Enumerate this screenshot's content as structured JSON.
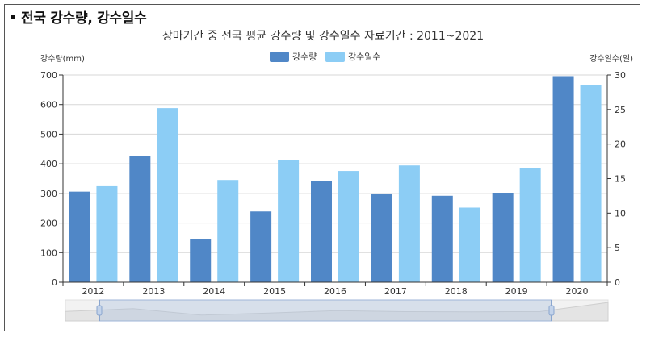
{
  "heading": "전국 강수량, 강수일수",
  "chart_data": {
    "type": "bar",
    "title": "장마기간 중 전국 평균 강수량 및 강수일수 자료기간 : 2011~2021",
    "categories": [
      "2012",
      "2013",
      "2014",
      "2015",
      "2016",
      "2017",
      "2018",
      "2019",
      "2020"
    ],
    "series": [
      {
        "name": "강수량",
        "axis": "left",
        "color": "#5087c7",
        "values": [
          306,
          427,
          146,
          239,
          342,
          297,
          292,
          301,
          696
        ]
      },
      {
        "name": "강수일수",
        "axis": "right",
        "color": "#8ccdf5",
        "values": [
          13.9,
          25.2,
          14.8,
          17.7,
          16.1,
          16.9,
          10.8,
          16.5,
          28.5
        ]
      }
    ],
    "ylabel_left": "강수량(mm)",
    "ylabel_right": "강수일수(일)",
    "ylim_left": [
      0,
      700
    ],
    "yticks_left": [
      "0",
      "100",
      "200",
      "300",
      "400",
      "500",
      "600",
      "700"
    ],
    "ylim_right": [
      0,
      30
    ],
    "yticks_right": [
      "0",
      "5",
      "10",
      "15",
      "20",
      "25",
      "30"
    ],
    "grid": true,
    "legend": "top-center"
  }
}
